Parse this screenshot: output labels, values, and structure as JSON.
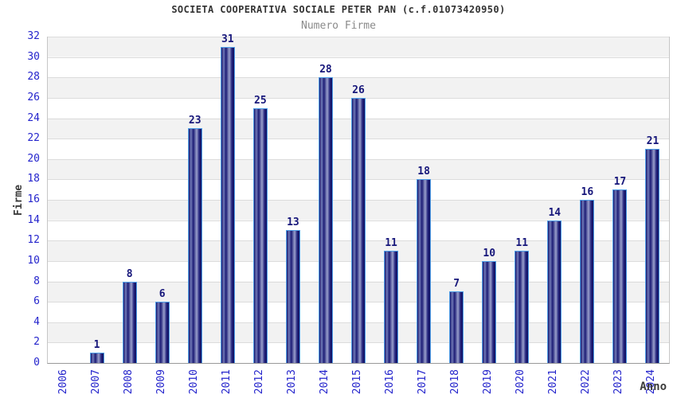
{
  "chart_data": {
    "type": "bar",
    "title": "SOCIETA COOPERATIVA SOCIALE PETER PAN (c.f.01073420950)",
    "subtitle": "Numero Firme",
    "xlabel": "Anno",
    "ylabel": "Firme",
    "categories": [
      "2006",
      "2007",
      "2008",
      "2009",
      "2010",
      "2011",
      "2012",
      "2013",
      "2014",
      "2015",
      "2016",
      "2017",
      "2018",
      "2019",
      "2020",
      "2021",
      "2022",
      "2023",
      "2024"
    ],
    "values": [
      0,
      1,
      8,
      6,
      23,
      31,
      25,
      13,
      28,
      26,
      11,
      18,
      7,
      10,
      11,
      14,
      16,
      17,
      21
    ],
    "ylim": [
      0,
      32
    ],
    "ytick_step": 2,
    "grid": "horizontal",
    "legend": "none",
    "colors": {
      "bar_dark": "#16166d",
      "bar_light": "#9aa0cc",
      "bar_border": "#4f9fe8",
      "tick_label": "#2424cc",
      "value_label": "#16167a",
      "band_gray": "#f2f2f2",
      "gridline": "#dcdcdc",
      "title": "#333333",
      "subtitle": "#8a8a8a",
      "axis_label": "#3c3c3c"
    }
  }
}
